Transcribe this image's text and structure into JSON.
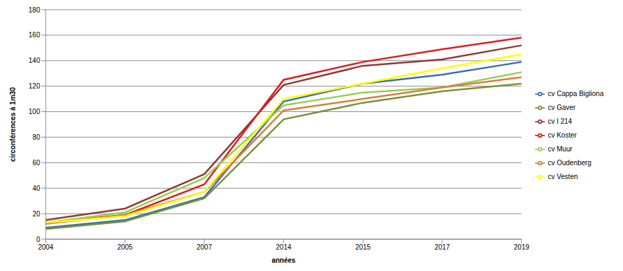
{
  "chart_data": {
    "type": "line",
    "x_label": "années",
    "y_label": "circonférences à 1m30",
    "categories": [
      "2004",
      "2005",
      "2007",
      "2014",
      "2015",
      "2017",
      "2019"
    ],
    "series": [
      {
        "name": "cv Cappa Bigliona",
        "color": "#3b6db0",
        "values": [
          9,
          15,
          33,
          108,
          122,
          129,
          139
        ]
      },
      {
        "name": "cv Gaver",
        "color": "#77933c",
        "values": [
          8,
          14,
          32,
          94,
          107,
          116,
          122
        ]
      },
      {
        "name": "cv I 214",
        "color": "#953735",
        "values": [
          15,
          24,
          51,
          121,
          136,
          141,
          152
        ]
      },
      {
        "name": "cv Koster",
        "color": "#e31a1c",
        "values": [
          13,
          19,
          43,
          125,
          139,
          149,
          158
        ]
      },
      {
        "name": "cv Muur",
        "color": "#92d050",
        "values": [
          13,
          21,
          48,
          105,
          115,
          119,
          131
        ]
      },
      {
        "name": "cv Oudenberg",
        "color": "#e07b39",
        "values": [
          12,
          19,
          37,
          101,
          110,
          119,
          127
        ]
      },
      {
        "name": "cv Vesten",
        "color": "#ffff00",
        "values": [
          13,
          18,
          37,
          110,
          122,
          134,
          145
        ]
      }
    ],
    "ylim": [
      0,
      180
    ],
    "yticks": [
      0,
      20,
      40,
      60,
      80,
      100,
      120,
      140,
      160,
      180
    ],
    "grid": true,
    "legend": "right"
  }
}
